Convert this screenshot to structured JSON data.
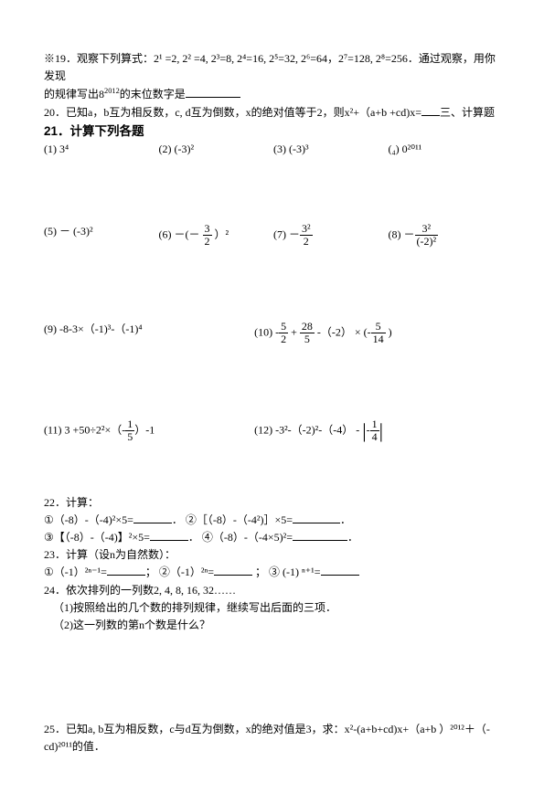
{
  "q19": {
    "prefix": "※19．观察下列算式：2",
    "series": "¹ =2, 2² =4, 2³=8, 2⁴=16, 2⁵=32, 2⁶=64，2⁷=128, 2⁸=256．通过观察，用你发现",
    "line2a": "的规律写出8",
    "exp": "2012",
    "line2b": "的末位数字是",
    "blank_w": 60
  },
  "q20": {
    "text_a": "20．已知a，b互为相反数，c, d互为倒数，x的绝对值等于2，则x²+（a+b +cd)x=",
    "blank_w": 20,
    "text_b": "三、计算题"
  },
  "q21": {
    "title": "21．计算下列各题",
    "r1": {
      "a": "(1) 3⁴",
      "b": "(2) (-3)²",
      "c": "(3) (-3)³",
      "d": "(₄) 0²⁰¹¹"
    },
    "r2": {
      "a": "(5) － (-3)²",
      "b_pre": "(6) －(－ ",
      "b_num": "3",
      "b_den": "2",
      "b_post": " ）²",
      "c_pre": "(7) －",
      "c_num": "3²",
      "c_den": "2",
      "d_pre": "(8) －",
      "d_num": "3²",
      "d_den": "(-2)²"
    },
    "r3": {
      "a": "(9) -8-3×（-1)³-（-1)⁴",
      "b_pre": "(10) -",
      "b_f1n": "5",
      "b_f1d": "2",
      "b_mid": " + ",
      "b_f2n": "28",
      "b_f2d": "5",
      "b_mid2": " -（-2） × (-",
      "b_f3n": "5",
      "b_f3d": "14",
      "b_post": " )"
    },
    "r4": {
      "a_pre": "(11) 3 +50÷2²×（-",
      "a_num": "1",
      "a_den": "5",
      "a_post": "）-1",
      "b_pre": "(12) -3²-（-2)²-（-4） - ",
      "b_num": "1",
      "b_den": "4"
    }
  },
  "q22": {
    "title": "22．计算：",
    "l1a": "①（-8）-（-4)²×5=",
    "l1a_w": 42,
    "l1a_p": "．",
    "l1b": " ②［（-8）-（-4²)］×5=",
    "l1b_w": 52,
    "l1b_p": "．",
    "l2a": "③【（-8）-（-4)】²×5=",
    "l2a_w": 42,
    "l2a_p": "．",
    "l2b": " ④（-8）-（-4×5)²=",
    "l2b_w": 60,
    "l2b_p": "．"
  },
  "q23": {
    "title": "23．计算（设n为自然数）：",
    "a": "①（-1）²ⁿ⁻¹=",
    "a_w": 42,
    "a_p": "；",
    "b": " ②（-1）²ⁿ=",
    "b_w": 42,
    "b_p": " ；",
    "c": " ③ (-1) ⁿ⁺¹=",
    "c_w": 42
  },
  "q24": {
    "title": "24．依次排列的一列数2, 4, 8, 16, 32……",
    "s1": "（1)按照给出的几个数的排列规律，继续写出后面的三项．",
    "s2": "（2)这一列数的第n个数是什么？"
  },
  "q25": {
    "text": "25．已知a, b互为相反数，c与d互为倒数，x的绝对值是3，求：x²-(a+b+cd)x+（a+b ）²⁰¹²＋（-cd)²⁰¹¹的值．"
  }
}
